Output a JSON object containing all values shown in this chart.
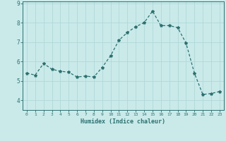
{
  "x": [
    0,
    1,
    2,
    3,
    4,
    5,
    6,
    7,
    8,
    9,
    10,
    11,
    12,
    13,
    14,
    15,
    16,
    17,
    18,
    19,
    20,
    21,
    22,
    23
  ],
  "y": [
    5.4,
    5.3,
    5.9,
    5.6,
    5.5,
    5.45,
    5.2,
    5.25,
    5.2,
    5.7,
    6.3,
    7.1,
    7.5,
    7.8,
    8.0,
    8.6,
    7.85,
    7.85,
    7.75,
    6.95,
    5.4,
    4.3,
    4.35,
    4.45
  ],
  "bg_color": "#caeaea",
  "line_color": "#2d7070",
  "marker": "*",
  "marker_size": 3,
  "xlabel": "Humidex (Indice chaleur)",
  "ylabel": "",
  "xlim": [
    -0.5,
    23.5
  ],
  "ylim": [
    3.5,
    9.1
  ],
  "yticks": [
    4,
    5,
    6,
    7,
    8,
    9
  ],
  "xticks": [
    0,
    1,
    2,
    3,
    4,
    5,
    6,
    7,
    8,
    9,
    10,
    11,
    12,
    13,
    14,
    15,
    16,
    17,
    18,
    19,
    20,
    21,
    22,
    23
  ],
  "grid_color": "#b0d8d8",
  "tick_color": "#2d7070",
  "label_color": "#2d7070"
}
